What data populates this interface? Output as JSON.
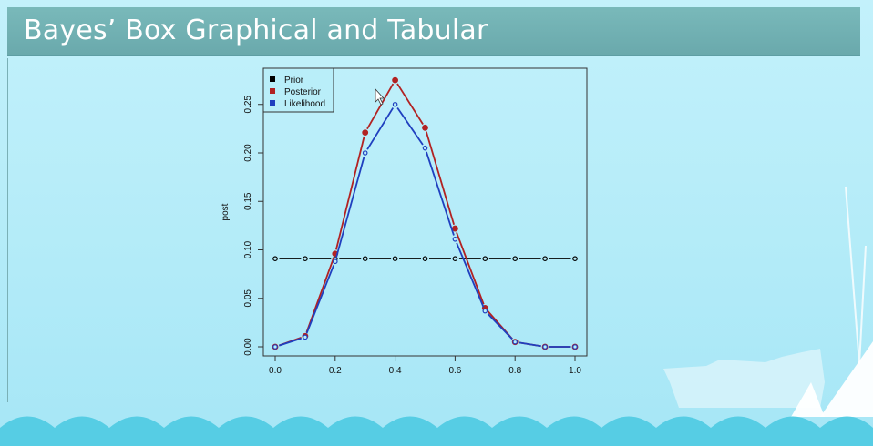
{
  "slide": {
    "title": "Bayes’ Box Graphical and Tabular"
  },
  "colors": {
    "title_bar": "#6fafb2",
    "prior": "#000000",
    "posterior": "#b22222",
    "likelihood": "#1f3fbf"
  },
  "chart_data": {
    "type": "line",
    "x": [
      0.0,
      0.1,
      0.2,
      0.3,
      0.4,
      0.5,
      0.6,
      0.7,
      0.8,
      0.9,
      1.0
    ],
    "xticks": [
      "0.0",
      "0.2",
      "0.4",
      "0.6",
      "0.8",
      "1.0"
    ],
    "yticks": [
      "0.00",
      "0.05",
      "0.10",
      "0.15",
      "0.20",
      "0.25"
    ],
    "ylabel": "post",
    "xlabel": "",
    "xlim": [
      0.0,
      1.0
    ],
    "ylim": [
      0.0,
      0.27
    ],
    "legend_position": "top-left",
    "series": [
      {
        "name": "Prior",
        "color": "#000000",
        "marker": "open",
        "values": [
          0.0909,
          0.0909,
          0.0909,
          0.0909,
          0.0909,
          0.0909,
          0.0909,
          0.0909,
          0.0909,
          0.0909,
          0.0909
        ]
      },
      {
        "name": "Posterior",
        "color": "#b22222",
        "marker": "filled",
        "values": [
          0.0,
          0.011,
          0.096,
          0.221,
          0.275,
          0.226,
          0.122,
          0.04,
          0.005,
          0.0,
          0.0
        ]
      },
      {
        "name": "Likelihood",
        "color": "#1f3fbf",
        "marker": "open",
        "values": [
          0.0,
          0.01,
          0.088,
          0.2,
          0.25,
          0.205,
          0.111,
          0.037,
          0.005,
          0.0,
          0.0
        ]
      }
    ]
  }
}
